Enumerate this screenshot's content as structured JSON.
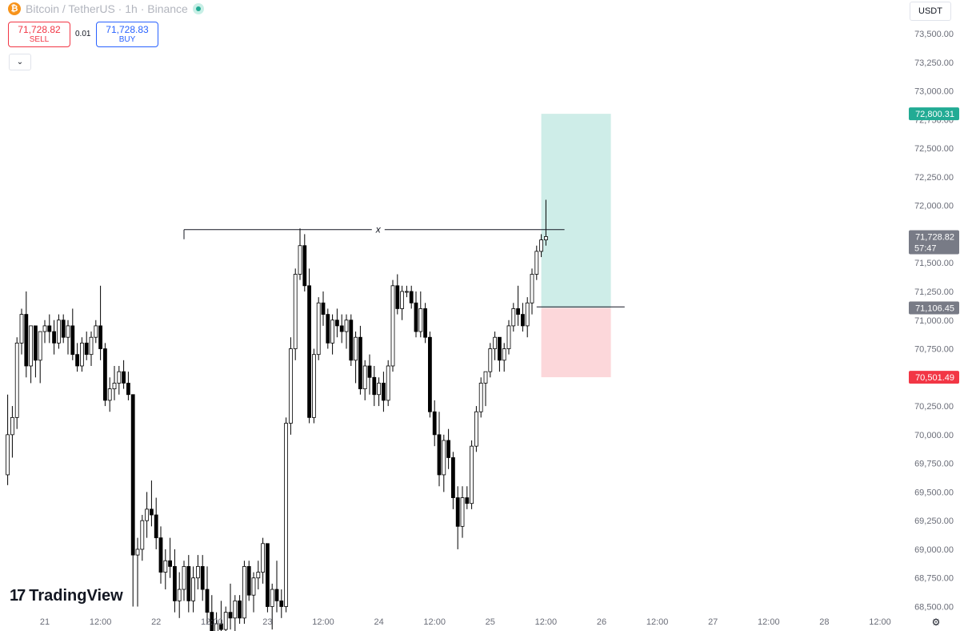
{
  "header": {
    "symbol": "Bitcoin / TetherUS · 1h · Binance",
    "coin_glyph": "₿"
  },
  "trade": {
    "sell_price": "71,728.82",
    "sell_label": "SELL",
    "buy_price": "71,728.83",
    "buy_label": "BUY",
    "spread": "0.01"
  },
  "currency": "USDT",
  "watermark": {
    "logo": "17",
    "name": "TradingView"
  },
  "colors": {
    "up": "#ffffff",
    "down": "#000000",
    "wick": "#000000",
    "profit": "#22ab94",
    "loss": "#f23645",
    "current": "#787b86"
  },
  "chart_data": {
    "type": "candlestick",
    "y_axis": {
      "range": [
        68450,
        73750
      ],
      "ticks": [
        68500,
        68750,
        69000,
        69250,
        69500,
        69750,
        70000,
        70250,
        70500,
        70750,
        71000,
        71250,
        71500,
        71750,
        72000,
        72250,
        72500,
        72750,
        73000,
        73250,
        73500
      ],
      "tick_labels": [
        "68,500.00",
        "68,750.00",
        "69,000.00",
        "69,250.00",
        "69,500.00",
        "69,750.00",
        "70,000.00",
        "70,250.00",
        "70,500.00",
        "70,750.00",
        "71,000.00",
        "71,250.00",
        "71,500.00",
        "71,750.00",
        "72,000.00",
        "72,250.00",
        "72,500.00",
        "72,750.00",
        "73,000.00",
        "73,250.00",
        "73,500.00"
      ]
    },
    "x_axis": {
      "ticks": [
        0,
        12,
        24,
        36,
        48,
        60,
        72,
        84,
        96,
        108,
        120,
        132,
        144,
        156,
        168,
        180
      ],
      "tick_labels": [
        "21",
        "12:00",
        "22",
        "12:00",
        "23",
        "12:00",
        "24",
        "12:00",
        "25",
        "12:00",
        "26",
        "12:00",
        "27",
        "12:00",
        "28",
        "12:00"
      ]
    },
    "price_labels": {
      "target": {
        "value": 72800.31,
        "label": "72,800.31"
      },
      "current": {
        "value": 71728.82,
        "label": "71,728.82",
        "countdown": "57:47"
      },
      "entry": {
        "value": 71106.45,
        "label": "71,106.45"
      },
      "stop": {
        "value": 70501.49,
        "label": "70,501.49"
      }
    },
    "position": {
      "start": 107,
      "end": 122,
      "entry": 71106.45,
      "target": 72800.31,
      "stop": 70501.49
    },
    "level_line": {
      "start": 30,
      "end": 112,
      "value": 71790,
      "marker": "x"
    },
    "entry_line": {
      "start": 106,
      "end": 122,
      "value": 71115
    },
    "candles": [
      [
        69650,
        70350,
        69560,
        70000
      ],
      [
        70000,
        70250,
        69800,
        70150
      ],
      [
        70150,
        70850,
        70050,
        70800
      ],
      [
        70800,
        71100,
        70700,
        71050
      ],
      [
        71050,
        71250,
        70500,
        70600
      ],
      [
        70600,
        70950,
        70450,
        70950
      ],
      [
        70950,
        70950,
        70500,
        70650
      ],
      [
        70650,
        70900,
        70450,
        70900
      ],
      [
        70900,
        71000,
        70800,
        70950
      ],
      [
        70950,
        71050,
        70800,
        70900
      ],
      [
        70900,
        71000,
        70700,
        70800
      ],
      [
        70800,
        71050,
        70750,
        71000
      ],
      [
        71000,
        71050,
        70800,
        70850
      ],
      [
        70850,
        71000,
        70700,
        70950
      ],
      [
        70950,
        71100,
        70650,
        70700
      ],
      [
        70700,
        70800,
        70550,
        70600
      ],
      [
        70600,
        70850,
        70550,
        70800
      ],
      [
        70800,
        70900,
        70650,
        70700
      ],
      [
        70700,
        70900,
        70600,
        70850
      ],
      [
        70850,
        71000,
        70800,
        70950
      ],
      [
        70950,
        71300,
        70650,
        70750
      ],
      [
        70750,
        70800,
        70250,
        70300
      ],
      [
        70300,
        70500,
        70200,
        70400
      ],
      [
        70400,
        70600,
        70300,
        70450
      ],
      [
        70450,
        70600,
        70350,
        70550
      ],
      [
        70550,
        70650,
        70400,
        70450
      ],
      [
        70450,
        70550,
        70300,
        70350
      ],
      [
        70350,
        70350,
        68500,
        68950
      ],
      [
        68950,
        69100,
        68500,
        69000
      ],
      [
        69000,
        69300,
        68900,
        69250
      ],
      [
        69250,
        69500,
        69100,
        69350
      ],
      [
        69350,
        69600,
        69200,
        69300
      ],
      [
        69300,
        69450,
        69000,
        69100
      ],
      [
        69100,
        69200,
        68700,
        68800
      ],
      [
        68800,
        69000,
        68650,
        68900
      ],
      [
        68900,
        69100,
        68750,
        68850
      ],
      [
        68850,
        69000,
        68450,
        68550
      ],
      [
        68550,
        68800,
        68400,
        68650
      ],
      [
        68650,
        68900,
        68550,
        68850
      ],
      [
        68850,
        68950,
        68450,
        68550
      ],
      [
        68550,
        68850,
        68450,
        68750
      ],
      [
        68750,
        68950,
        68650,
        68850
      ],
      [
        68850,
        68950,
        68550,
        68650
      ],
      [
        68650,
        68850,
        68350,
        68450
      ],
      [
        68450,
        68600,
        68100,
        68250
      ],
      [
        68250,
        68450,
        68150,
        68350
      ],
      [
        68350,
        68550,
        68200,
        68300
      ],
      [
        68300,
        68500,
        68150,
        68450
      ],
      [
        68450,
        68700,
        68300,
        68400
      ],
      [
        68400,
        68600,
        68250,
        68550
      ],
      [
        68550,
        68600,
        68350,
        68400
      ],
      [
        68400,
        68900,
        68350,
        68850
      ],
      [
        68850,
        68900,
        68550,
        68600
      ],
      [
        68600,
        68800,
        68450,
        68750
      ],
      [
        68750,
        68900,
        68650,
        68800
      ],
      [
        68800,
        69100,
        68700,
        69050
      ],
      [
        69050,
        69050,
        68450,
        68500
      ],
      [
        68500,
        68700,
        68300,
        68650
      ],
      [
        68650,
        68900,
        68450,
        68550
      ],
      [
        68550,
        68650,
        68400,
        68500
      ],
      [
        68500,
        70150,
        68450,
        70100
      ],
      [
        70100,
        70850,
        70000,
        70750
      ],
      [
        70750,
        71450,
        70650,
        71400
      ],
      [
        71400,
        71800,
        71350,
        71650
      ],
      [
        71650,
        71750,
        71250,
        71300
      ],
      [
        71300,
        71450,
        70100,
        70150
      ],
      [
        70150,
        70750,
        70100,
        70700
      ],
      [
        70700,
        71200,
        70650,
        71150
      ],
      [
        71150,
        71250,
        70950,
        71050
      ],
      [
        71050,
        71100,
        70750,
        70800
      ],
      [
        70800,
        71050,
        70700,
        71000
      ],
      [
        71000,
        71100,
        70850,
        70950
      ],
      [
        70950,
        71050,
        70800,
        70900
      ],
      [
        70900,
        71050,
        70750,
        71000
      ],
      [
        71000,
        71050,
        70600,
        70650
      ],
      [
        70650,
        70900,
        70450,
        70850
      ],
      [
        70850,
        70950,
        70350,
        70400
      ],
      [
        70400,
        70650,
        70300,
        70600
      ],
      [
        70600,
        70700,
        70350,
        70500
      ],
      [
        70500,
        70600,
        70250,
        70350
      ],
      [
        70350,
        70500,
        70250,
        70450
      ],
      [
        70450,
        70550,
        70200,
        70300
      ],
      [
        70300,
        70650,
        70250,
        70600
      ],
      [
        70600,
        71350,
        70550,
        71300
      ],
      [
        71300,
        71400,
        71050,
        71100
      ],
      [
        71100,
        71300,
        71000,
        71250
      ],
      [
        71250,
        71300,
        71200,
        71250
      ],
      [
        71250,
        71300,
        71100,
        71150
      ],
      [
        71150,
        71250,
        70850,
        70900
      ],
      [
        70900,
        71250,
        70850,
        71100
      ],
      [
        71100,
        71150,
        70800,
        70850
      ],
      [
        70850,
        70900,
        70150,
        70200
      ],
      [
        70200,
        70300,
        69900,
        70000
      ],
      [
        70000,
        70200,
        69550,
        69650
      ],
      [
        69650,
        70000,
        69500,
        69950
      ],
      [
        69950,
        70050,
        69700,
        69800
      ],
      [
        69800,
        69850,
        69350,
        69450
      ],
      [
        69450,
        69550,
        69000,
        69200
      ],
      [
        69200,
        69550,
        69100,
        69450
      ],
      [
        69450,
        69550,
        69350,
        69400
      ],
      [
        69400,
        69950,
        69350,
        69900
      ],
      [
        69900,
        70250,
        69850,
        70200
      ],
      [
        70200,
        70500,
        70150,
        70450
      ],
      [
        70450,
        70550,
        70250,
        70550
      ],
      [
        70550,
        70800,
        70500,
        70750
      ],
      [
        70750,
        70900,
        70650,
        70850
      ],
      [
        70850,
        70850,
        70550,
        70650
      ],
      [
        70650,
        70800,
        70550,
        70750
      ],
      [
        70750,
        71000,
        70700,
        70950
      ],
      [
        70950,
        71150,
        70900,
        71100
      ],
      [
        71100,
        71300,
        70950,
        71050
      ],
      [
        71050,
        71150,
        70900,
        70950
      ],
      [
        70950,
        71200,
        70850,
        71150
      ],
      [
        71150,
        71450,
        71050,
        71400
      ],
      [
        71400,
        71650,
        71350,
        71600
      ],
      [
        71600,
        71750,
        71550,
        71700
      ],
      [
        71700,
        72050,
        71650,
        71729
      ]
    ]
  }
}
